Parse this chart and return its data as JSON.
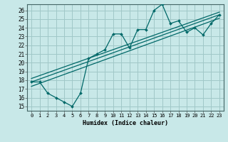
{
  "xlabel": "Humidex (Indice chaleur)",
  "bg_color": "#c8e8e8",
  "grid_color": "#a0c8c8",
  "line_color": "#006868",
  "xlim": [
    -0.5,
    23.5
  ],
  "ylim": [
    14.5,
    26.7
  ],
  "xticks": [
    0,
    1,
    2,
    3,
    4,
    5,
    6,
    7,
    8,
    9,
    10,
    11,
    12,
    13,
    14,
    15,
    16,
    17,
    18,
    19,
    20,
    21,
    22,
    23
  ],
  "yticks": [
    15,
    16,
    17,
    18,
    19,
    20,
    21,
    22,
    23,
    24,
    25,
    26
  ],
  "line1_x": [
    0,
    1,
    2,
    3,
    4,
    5,
    6,
    7,
    8,
    9,
    10,
    11,
    12,
    13,
    14,
    15,
    16,
    17,
    18,
    19,
    20,
    21,
    22,
    23
  ],
  "line1_y": [
    17.8,
    17.8,
    16.5,
    16.0,
    15.5,
    15.0,
    16.5,
    20.5,
    21.0,
    21.5,
    23.3,
    23.3,
    21.7,
    23.8,
    23.8,
    26.0,
    26.7,
    24.5,
    24.8,
    23.5,
    24.0,
    23.2,
    24.5,
    25.5
  ],
  "line2_x": [
    0,
    23
  ],
  "line2_y": [
    17.8,
    25.5
  ],
  "line3_x": [
    0,
    23
  ],
  "line3_y": [
    18.2,
    25.8
  ],
  "line4_x": [
    0,
    23
  ],
  "line4_y": [
    17.3,
    25.1
  ]
}
